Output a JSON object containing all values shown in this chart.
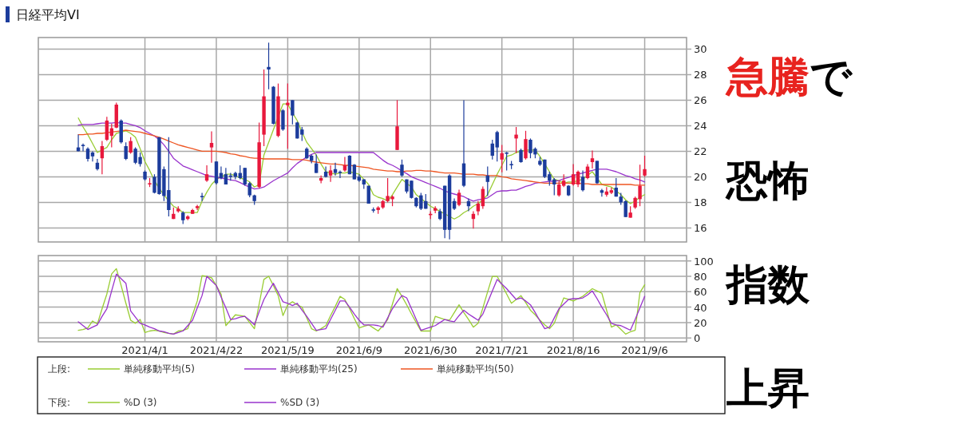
{
  "chart_data": [
    {
      "type": "candlestick",
      "title": "日経平均VI",
      "legend_title": "上段:",
      "legend": "bottom",
      "grid": true,
      "tick_labels": "y",
      "ylim": [
        14.9,
        30.9
      ],
      "yticks": [
        16,
        18,
        20,
        22,
        24,
        26,
        28,
        30
      ],
      "annotations": [
        "急騰で",
        "恐怖",
        "指数",
        "上昇"
      ],
      "categories": [
        null,
        null,
        null,
        null,
        null,
        null,
        null,
        null,
        null,
        null,
        null,
        null,
        null,
        null,
        "2021/4/1",
        null,
        null,
        null,
        null,
        null,
        null,
        null,
        null,
        null,
        null,
        null,
        null,
        null,
        null,
        "2021/4/22",
        null,
        null,
        null,
        null,
        null,
        null,
        null,
        null,
        null,
        null,
        null,
        null,
        null,
        null,
        "2021/5/19",
        null,
        null,
        null,
        null,
        null,
        null,
        null,
        null,
        null,
        null,
        null,
        null,
        null,
        null,
        "2021/6/9",
        null,
        null,
        null,
        null,
        null,
        null,
        null,
        null,
        null,
        null,
        null,
        null,
        null,
        null,
        "2021/6/30",
        null,
        null,
        null,
        null,
        null,
        null,
        null,
        null,
        null,
        null,
        null,
        null,
        null,
        null,
        "2021/7/21",
        null,
        null,
        null,
        null,
        null,
        null,
        null,
        null,
        null,
        null,
        null,
        null,
        null,
        null,
        "2021/8/16",
        null,
        null,
        null,
        null,
        null,
        null,
        null,
        null,
        null,
        null,
        null,
        null,
        null,
        null,
        "2021/9/6"
      ],
      "ohlc": [
        [
          22.3,
          23.3,
          22.0,
          22.0
        ],
        [
          22.5,
          22.6,
          22.0,
          22.4
        ],
        [
          22.2,
          22.3,
          21.2,
          21.4
        ],
        [
          21.9,
          22.0,
          21.2,
          21.6
        ],
        [
          21.1,
          21.4,
          20.5,
          20.6
        ],
        [
          21.45,
          22.8,
          20.2,
          22.4
        ],
        [
          22.9,
          24.7,
          22.8,
          24.4
        ],
        [
          23.2,
          24.15,
          22.3,
          23.8
        ],
        [
          23.85,
          25.8,
          23.8,
          25.65
        ],
        [
          24.4,
          24.5,
          22.6,
          22.7
        ],
        [
          22.4,
          22.7,
          21.3,
          21.4
        ],
        [
          21.9,
          23.1,
          21.8,
          22.8
        ],
        [
          22.2,
          22.3,
          21.0,
          21.1
        ],
        [
          21.55,
          21.9,
          20.8,
          21.0
        ],
        [
          20.4,
          20.5,
          19.7,
          19.8
        ],
        [
          19.4,
          19.9,
          19.2,
          19.5
        ],
        [
          20.0,
          20.2,
          18.7,
          18.75
        ],
        [
          23.1,
          23.1,
          18.6,
          18.65
        ],
        [
          20.6,
          20.8,
          18.1,
          18.5
        ],
        [
          18.96,
          23.1,
          16.9,
          17.4
        ],
        [
          16.7,
          17.6,
          16.7,
          17.1
        ],
        [
          17.3,
          17.7,
          17.2,
          17.5
        ],
        [
          17.2,
          17.3,
          16.3,
          16.6
        ],
        [
          16.7,
          17.0,
          16.6,
          16.9
        ],
        [
          17.1,
          17.5,
          17.1,
          17.4
        ],
        [
          17.55,
          17.8,
          17.4,
          17.7
        ],
        [
          18.5,
          18.75,
          18.1,
          18.4
        ],
        [
          19.7,
          20.9,
          19.6,
          20.2
        ],
        [
          22.3,
          23.55,
          21.1,
          22.65
        ],
        [
          21.2,
          21.2,
          19.4,
          19.5
        ],
        [
          20.3,
          20.8,
          19.8,
          19.9
        ],
        [
          20.2,
          20.7,
          19.4,
          19.4
        ],
        [
          20.1,
          20.3,
          19.7,
          20.0
        ],
        [
          20.3,
          20.4,
          19.8,
          20.0
        ],
        [
          20.3,
          20.9,
          19.8,
          19.9
        ],
        [
          20.7,
          20.7,
          19.3,
          19.4
        ],
        [
          19.5,
          19.6,
          18.4,
          18.55
        ],
        [
          18.55,
          18.6,
          17.8,
          18.1
        ],
        [
          19.2,
          24.25,
          19.1,
          22.7
        ],
        [
          23.3,
          28.4,
          22.4,
          26.3
        ],
        [
          28.6,
          30.5,
          26.85,
          28.4
        ],
        [
          27.05,
          27.1,
          24.1,
          24.15
        ],
        [
          23.2,
          27.3,
          23.1,
          26.3
        ],
        [
          25.2,
          25.3,
          23.6,
          23.7
        ],
        [
          25.6,
          27.3,
          22.2,
          25.8
        ],
        [
          26.0,
          26.0,
          24.1,
          24.8
        ],
        [
          24.25,
          24.3,
          23.0,
          23.0
        ],
        [
          23.7,
          23.9,
          22.8,
          23.3
        ],
        [
          22.2,
          22.3,
          21.4,
          21.45
        ],
        [
          21.65,
          21.75,
          21.05,
          21.25
        ],
        [
          21.05,
          21.75,
          20.3,
          20.3
        ],
        [
          19.7,
          20.1,
          19.5,
          19.9
        ],
        [
          20.4,
          20.8,
          19.95,
          20.0
        ],
        [
          20.1,
          20.9,
          19.6,
          20.5
        ],
        [
          20.6,
          21.1,
          20.1,
          20.3
        ],
        [
          20.4,
          20.5,
          19.9,
          20.3
        ],
        [
          20.5,
          21.55,
          20.4,
          20.9
        ],
        [
          21.65,
          21.7,
          20.2,
          20.2
        ],
        [
          20.95,
          21.0,
          19.8,
          19.8
        ],
        [
          20.0,
          20.2,
          19.6,
          19.7
        ],
        [
          19.8,
          19.8,
          19.05,
          19.4
        ],
        [
          19.3,
          19.3,
          17.9,
          17.9
        ],
        [
          17.45,
          17.6,
          17.2,
          17.35
        ],
        [
          17.4,
          17.7,
          17.1,
          17.6
        ],
        [
          17.6,
          18.2,
          17.5,
          18.1
        ],
        [
          18.1,
          19.9,
          18.0,
          18.5
        ],
        [
          18.25,
          18.55,
          17.7,
          18.45
        ],
        [
          22.1,
          26.0,
          22.1,
          23.95
        ],
        [
          20.95,
          21.35,
          20.0,
          20.1
        ],
        [
          19.8,
          19.8,
          18.7,
          18.85
        ],
        [
          19.7,
          19.7,
          18.3,
          18.35
        ],
        [
          18.35,
          18.4,
          17.6,
          17.7
        ],
        [
          18.55,
          18.75,
          17.4,
          17.5
        ],
        [
          18.1,
          18.65,
          17.5,
          17.5
        ],
        [
          17.0,
          17.3,
          16.7,
          17.1
        ],
        [
          17.35,
          17.7,
          17.15,
          17.55
        ],
        [
          17.3,
          17.5,
          16.6,
          16.7
        ],
        [
          19.3,
          19.3,
          15.2,
          15.85
        ],
        [
          20.1,
          20.2,
          15.1,
          15.85
        ],
        [
          18.1,
          18.3,
          17.4,
          17.5
        ],
        [
          17.8,
          19.0,
          17.7,
          18.75
        ],
        [
          21.05,
          26.0,
          19.2,
          19.3
        ],
        [
          18.1,
          18.3,
          17.3,
          17.7
        ],
        [
          16.7,
          17.3,
          15.95,
          17.1
        ],
        [
          17.3,
          18.1,
          17.0,
          17.9
        ],
        [
          17.7,
          19.25,
          17.5,
          19.05
        ],
        [
          20.1,
          20.8,
          18.5,
          19.6
        ],
        [
          22.6,
          22.9,
          21.35,
          21.65
        ],
        [
          23.5,
          23.6,
          21.2,
          22.3
        ],
        [
          21.35,
          22.5,
          20.35,
          21.85
        ],
        [
          21.9,
          21.95,
          20.5,
          21.8
        ],
        [
          21.0,
          21.25,
          20.6,
          20.9
        ],
        [
          23.0,
          23.9,
          21.85,
          23.3
        ],
        [
          22.1,
          22.2,
          21.1,
          21.15
        ],
        [
          21.45,
          23.6,
          21.35,
          22.95
        ],
        [
          22.9,
          23.0,
          21.45,
          21.85
        ],
        [
          22.2,
          22.3,
          21.45,
          21.75
        ],
        [
          21.25,
          21.55,
          20.85,
          20.95
        ],
        [
          21.35,
          21.35,
          19.9,
          20.0
        ],
        [
          20.2,
          20.4,
          19.3,
          19.7
        ],
        [
          19.8,
          19.9,
          18.55,
          19.4
        ],
        [
          18.55,
          19.7,
          18.45,
          19.4
        ],
        [
          19.3,
          20.2,
          19.2,
          19.7
        ],
        [
          19.3,
          19.35,
          18.5,
          18.55
        ],
        [
          19.4,
          21.0,
          19.3,
          20.2
        ],
        [
          19.4,
          20.5,
          19.2,
          20.4
        ],
        [
          20.0,
          20.5,
          18.85,
          18.95
        ],
        [
          19.9,
          21.0,
          19.8,
          20.8
        ],
        [
          21.15,
          22.05,
          20.65,
          21.45
        ],
        [
          21.25,
          21.25,
          19.45,
          19.5
        ],
        [
          18.95,
          19.05,
          18.45,
          18.75
        ],
        [
          18.6,
          19.2,
          18.45,
          18.85
        ],
        [
          18.75,
          19.15,
          18.65,
          18.95
        ],
        [
          19.15,
          19.9,
          18.45,
          18.45
        ],
        [
          18.45,
          18.75,
          17.8,
          18.0
        ],
        [
          18.1,
          18.15,
          16.85,
          16.85
        ],
        [
          16.8,
          17.7,
          16.8,
          17.2
        ],
        [
          17.6,
          18.45,
          17.5,
          18.35
        ],
        [
          18.25,
          20.95,
          17.7,
          19.3
        ],
        [
          20.1,
          21.65,
          20.0,
          20.6
        ]
      ],
      "colors": [
        "#1c3c9c",
        "#1c3c9c",
        "#1c3c9c",
        "#1c3c9c",
        "#1c3c9c",
        "#e8183c",
        "#e8183c",
        "#e8183c",
        "#e8183c",
        "#1c3c9c",
        "#1c3c9c",
        "#e8183c",
        "#1c3c9c",
        "#1c3c9c",
        "#1c3c9c",
        "#e8183c",
        "#1c3c9c",
        "#1c3c9c",
        "#1c3c9c",
        "#1c3c9c",
        "#e8183c",
        "#e8183c",
        "#1c3c9c",
        "#e8183c",
        "#e8183c",
        "#e8183c",
        "#1c3c9c",
        "#e8183c",
        "#e8183c",
        "#1c3c9c",
        "#1c3c9c",
        "#1c3c9c",
        "#1c3c9c",
        "#1c3c9c",
        "#1c3c9c",
        "#1c3c9c",
        "#1c3c9c",
        "#1c3c9c",
        "#e8183c",
        "#e8183c",
        "#1c3c9c",
        "#1c3c9c",
        "#e8183c",
        "#1c3c9c",
        "#e8183c",
        "#1c3c9c",
        "#1c3c9c",
        "#1c3c9c",
        "#1c3c9c",
        "#1c3c9c",
        "#1c3c9c",
        "#e8183c",
        "#1c3c9c",
        "#e8183c",
        "#1c3c9c",
        "#1c3c9c",
        "#e8183c",
        "#1c3c9c",
        "#1c3c9c",
        "#1c3c9c",
        "#1c3c9c",
        "#1c3c9c",
        "#1c3c9c",
        "#e8183c",
        "#e8183c",
        "#e8183c",
        "#e8183c",
        "#e8183c",
        "#1c3c9c",
        "#1c3c9c",
        "#1c3c9c",
        "#1c3c9c",
        "#1c3c9c",
        "#1c3c9c",
        "#e8183c",
        "#e8183c",
        "#1c3c9c",
        "#1c3c9c",
        "#1c3c9c",
        "#1c3c9c",
        "#e8183c",
        "#1c3c9c",
        "#1c3c9c",
        "#e8183c",
        "#e8183c",
        "#e8183c",
        "#1c3c9c",
        "#1c3c9c",
        "#1c3c9c",
        "#e8183c",
        "#1c3c9c",
        "#1c3c9c",
        "#e8183c",
        "#1c3c9c",
        "#e8183c",
        "#1c3c9c",
        "#1c3c9c",
        "#1c3c9c",
        "#1c3c9c",
        "#1c3c9c",
        "#1c3c9c",
        "#e8183c",
        "#e8183c",
        "#1c3c9c",
        "#e8183c",
        "#e8183c",
        "#1c3c9c",
        "#e8183c",
        "#e8183c",
        "#1c3c9c",
        "#1c3c9c",
        "#e8183c",
        "#e8183c",
        "#1c3c9c",
        "#1c3c9c",
        "#1c3c9c",
        "#e8183c",
        "#e8183c",
        "#e8183c",
        "#e8183c"
      ],
      "series": [
        {
          "type": "line",
          "name": "単純移動平均(5)",
          "color": "#99cc33",
          "values": [
            24.6,
            23.9,
            23.3,
            22.6,
            21.9,
            22.1,
            22.3,
            22.9,
            23.4,
            23.5,
            23.6,
            23.4,
            23.1,
            22.2,
            21.2,
            20.5,
            19.7,
            19.1,
            18.6,
            18.1,
            17.7,
            17.5,
            17.2,
            17.2,
            17.2,
            17.2,
            18.1,
            18.8,
            19.4,
            19.8,
            20.0,
            20.2,
            20.2,
            20.1,
            19.9,
            19.8,
            19.6,
            19.2,
            19.4,
            21.7,
            22.7,
            23.7,
            24.7,
            25.7,
            25.7,
            25.0,
            24.4,
            23.5,
            22.7,
            22.2,
            21.7,
            21.0,
            20.4,
            20.3,
            20.2,
            20.3,
            20.3,
            20.4,
            20.3,
            20.2,
            19.8,
            19.4,
            18.6,
            18.4,
            18.3,
            18.1,
            18.6,
            19.2,
            19.8,
            19.5,
            19.2,
            18.6,
            18.3,
            18.0,
            17.7,
            17.5,
            17.3,
            17.1,
            16.9,
            16.7,
            16.9,
            17.2,
            17.4,
            17.7,
            17.9,
            18.2,
            18.6,
            19.4,
            20.2,
            20.9,
            21.6,
            21.7,
            21.9,
            22.0,
            22.1,
            22.1,
            22.1,
            21.6,
            21.0,
            20.4,
            19.8,
            19.7,
            19.5,
            19.6,
            19.6,
            19.7,
            19.8,
            20.1,
            20.4,
            19.9,
            19.4,
            19.3,
            19.2,
            18.9,
            18.6,
            18.2,
            17.9,
            18.1,
            18.4,
            18.6
          ]
        },
        {
          "type": "line",
          "name": "単純移動平均(25)",
          "color": "#9933cc",
          "values": [
            24.05,
            24.1,
            24.1,
            24.1,
            24.15,
            24.2,
            24.2,
            24.2,
            24.25,
            24.2,
            24.2,
            24.1,
            24.0,
            23.85,
            23.6,
            23.4,
            23.2,
            22.9,
            22.5,
            22.0,
            21.45,
            21.15,
            20.85,
            20.7,
            20.55,
            20.4,
            20.25,
            20.1,
            20.05,
            19.95,
            19.9,
            19.85,
            19.75,
            19.7,
            19.55,
            19.35,
            19.2,
            19.05,
            19.1,
            19.2,
            19.45,
            19.7,
            19.9,
            20.1,
            20.3,
            20.7,
            21.05,
            21.3,
            21.55,
            21.75,
            21.9,
            21.9,
            21.9,
            21.9,
            21.9,
            21.9,
            21.9,
            21.9,
            21.9,
            21.9,
            21.9,
            21.9,
            21.9,
            21.6,
            21.3,
            21.05,
            20.9,
            20.7,
            20.45,
            20.25,
            20.0,
            19.85,
            19.7,
            19.55,
            19.4,
            19.25,
            19.1,
            18.9,
            18.75,
            18.65,
            18.55,
            18.45,
            18.25,
            18.1,
            18.2,
            18.25,
            18.35,
            18.6,
            18.85,
            18.9,
            18.9,
            18.95,
            18.95,
            19.1,
            19.25,
            19.35,
            19.5,
            19.55,
            19.6,
            19.65,
            19.65,
            19.7,
            19.85,
            19.95,
            20.1,
            20.2,
            20.3,
            20.4,
            20.5,
            20.6,
            20.6,
            20.6,
            20.5,
            20.4,
            20.25,
            20.1,
            20.0,
            19.85,
            19.75,
            19.6
          ]
        },
        {
          "type": "line",
          "name": "単純移動平均(50)",
          "color": "#ee5522",
          "values": [
            23.3,
            23.3,
            23.35,
            23.35,
            23.4,
            23.4,
            23.45,
            23.5,
            23.55,
            23.6,
            23.65,
            23.6,
            23.55,
            23.5,
            23.4,
            23.3,
            23.2,
            23.1,
            22.95,
            22.8,
            22.65,
            22.5,
            22.4,
            22.3,
            22.2,
            22.1,
            22.0,
            22.0,
            22.0,
            22.0,
            21.95,
            21.9,
            21.8,
            21.75,
            21.65,
            21.6,
            21.5,
            21.45,
            21.45,
            21.4,
            21.4,
            21.4,
            21.4,
            21.4,
            21.4,
            21.35,
            21.35,
            21.35,
            21.3,
            21.2,
            21.15,
            21.1,
            21.05,
            21.0,
            21.0,
            20.95,
            20.9,
            20.9,
            20.85,
            20.8,
            20.75,
            20.7,
            20.6,
            20.55,
            20.5,
            20.45,
            20.45,
            20.4,
            20.4,
            20.45,
            20.45,
            20.5,
            20.5,
            20.45,
            20.45,
            20.4,
            20.35,
            20.3,
            20.3,
            20.3,
            20.25,
            20.2,
            20.2,
            20.2,
            20.15,
            20.15,
            20.1,
            20.1,
            20.1,
            20.0,
            19.95,
            19.85,
            19.8,
            19.75,
            19.7,
            19.65,
            19.6,
            19.55,
            19.5,
            19.5,
            19.5,
            19.5,
            19.5,
            19.5,
            19.5,
            19.5,
            19.45,
            19.45,
            19.4,
            19.4,
            19.4,
            19.4,
            19.4,
            19.4,
            19.4,
            19.4,
            19.4,
            19.35,
            19.35,
            19.35
          ]
        }
      ]
    },
    {
      "type": "line",
      "legend_title": "下段:",
      "legend": "bottom",
      "grid": true,
      "ylim": [
        -5,
        107
      ],
      "yticks": [
        0,
        20,
        40,
        60,
        80,
        100
      ],
      "categories": [
        null,
        null,
        null,
        null,
        null,
        null,
        null,
        null,
        null,
        null,
        null,
        null,
        null,
        null,
        "2021/4/1",
        null,
        null,
        null,
        null,
        null,
        null,
        null,
        null,
        null,
        null,
        null,
        null,
        null,
        null,
        "2021/4/22",
        null,
        null,
        null,
        null,
        null,
        null,
        null,
        null,
        null,
        null,
        null,
        null,
        null,
        null,
        "2021/5/19",
        null,
        null,
        null,
        null,
        null,
        null,
        null,
        null,
        null,
        null,
        null,
        null,
        null,
        null,
        "2021/6/9",
        null,
        null,
        null,
        null,
        null,
        null,
        null,
        null,
        null,
        null,
        null,
        null,
        null,
        null,
        "2021/6/30",
        null,
        null,
        null,
        null,
        null,
        null,
        null,
        null,
        null,
        null,
        null,
        null,
        null,
        null,
        "2021/7/21",
        null,
        null,
        null,
        null,
        null,
        null,
        null,
        null,
        null,
        null,
        null,
        null,
        null,
        null,
        "2021/8/16",
        null,
        null,
        null,
        null,
        null,
        null,
        null,
        null,
        null,
        null,
        null,
        null,
        null,
        null,
        "2021/9/6"
      ],
      "series": [
        {
          "name": "%D (3)",
          "color": "#99cc33",
          "values": [
            10,
            11,
            13,
            22,
            18,
            38,
            57,
            83,
            90,
            68,
            45,
            23,
            19,
            24,
            7,
            9,
            10,
            9,
            7,
            6,
            5,
            9,
            10,
            12,
            30,
            48,
            81,
            80,
            78,
            68,
            57,
            16,
            23,
            30,
            29,
            28,
            20,
            12,
            44,
            76,
            80,
            68,
            55,
            29,
            43,
            47,
            43,
            40,
            26,
            12,
            9,
            12,
            16,
            29,
            41,
            54,
            50,
            38,
            25,
            13,
            15,
            17,
            13,
            9,
            16,
            24,
            44,
            64,
            54,
            43,
            31,
            20,
            9,
            9,
            9,
            28,
            26,
            24,
            23,
            33,
            43,
            33,
            24,
            14,
            19,
            39,
            60,
            80,
            80,
            69,
            57,
            45,
            50,
            55,
            46,
            36,
            30,
            23,
            17,
            12,
            19,
            36,
            52,
            50,
            48,
            51,
            54,
            59,
            64,
            61,
            58,
            36,
            14,
            17,
            11,
            5,
            8,
            10,
            59,
            69
          ]
        },
        {
          "name": "%SD (3)",
          "color": "#9933cc",
          "values": [
            21,
            16,
            11,
            14,
            17,
            28,
            38,
            61,
            83,
            77,
            71,
            35,
            27,
            19,
            17,
            14,
            12,
            9,
            8,
            6,
            5,
            7,
            9,
            16,
            23,
            39,
            55,
            80,
            74,
            68,
            53,
            39,
            24,
            25,
            27,
            28,
            23,
            17,
            34,
            50,
            61,
            71,
            59,
            47,
            45,
            42,
            45,
            36,
            28,
            19,
            10,
            11,
            12,
            24,
            36,
            48,
            48,
            40,
            31,
            23,
            17,
            17,
            17,
            16,
            14,
            26,
            38,
            47,
            55,
            52,
            38,
            24,
            10,
            12,
            14,
            16,
            20,
            24,
            22,
            21,
            29,
            36,
            31,
            27,
            23,
            31,
            46,
            61,
            76,
            70,
            64,
            57,
            50,
            52,
            48,
            43,
            33,
            22,
            12,
            14,
            26,
            38,
            44,
            50,
            51,
            51,
            52,
            56,
            61,
            51,
            40,
            30,
            19,
            17,
            16,
            13,
            10,
            24,
            39,
            54
          ]
        }
      ]
    }
  ]
}
